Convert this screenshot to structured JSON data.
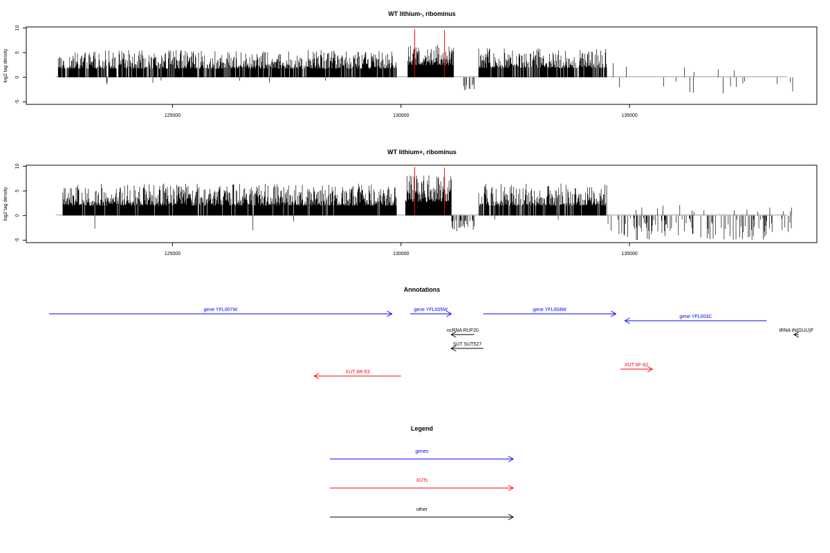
{
  "chart_data": [
    {
      "type": "bar",
      "title": "WT lithium-, ribominus",
      "xlabel": "",
      "ylabel": "log2 tag density",
      "xlim": [
        121800,
        139100
      ],
      "ylim": [
        -5.5,
        10.2
      ],
      "x_ticks": [
        125000,
        130000,
        135000
      ],
      "x_tick_labels": [
        "125000",
        "130000",
        "135000"
      ],
      "y_ticks": [
        -5,
        0,
        5,
        10
      ],
      "y_tick_labels": [
        "-5",
        "0",
        "5",
        "10"
      ],
      "grid": false,
      "bar_color": "#000000",
      "highlight_color": "#ff0000",
      "highlight_bars": [
        {
          "x": 130300,
          "y": 9.7
        },
        {
          "x": 130950,
          "y": 9.6
        }
      ],
      "segments": [
        {
          "start": 122500,
          "end": 129900,
          "density": 0.86,
          "min": 0.5,
          "max": 5.5,
          "neg_rate": 0.004,
          "neg_min": -1.5,
          "neg_max": -0.5
        },
        {
          "start": 130150,
          "end": 131150,
          "density": 1.0,
          "min": 1.0,
          "max": 6.8,
          "neg_rate": 0.0,
          "neg_min": 0,
          "neg_max": 0
        },
        {
          "start": 131350,
          "end": 131600,
          "density": 0.3,
          "min": -2.8,
          "max": -1.0,
          "neg_rate": 1.0,
          "neg_min": -2.8,
          "neg_max": -1.0
        },
        {
          "start": 131700,
          "end": 134500,
          "density": 0.85,
          "min": 0.5,
          "max": 6.0,
          "neg_rate": 0.0,
          "neg_min": 0,
          "neg_max": 0
        },
        {
          "start": 134600,
          "end": 138600,
          "density": 0.05,
          "min": -3.3,
          "max": 3.3,
          "neg_rate": 0.7,
          "neg_min": -3.3,
          "neg_max": -0.5
        }
      ]
    },
    {
      "type": "bar",
      "title": "WT lithium+, ribominus",
      "xlabel": "",
      "ylabel": "log2 tag density",
      "xlim": [
        121800,
        139100
      ],
      "ylim": [
        -5.5,
        10.2
      ],
      "x_ticks": [
        125000,
        130000,
        135000
      ],
      "x_tick_labels": [
        "125000",
        "130000",
        "135000"
      ],
      "y_ticks": [
        -5,
        0,
        5,
        10
      ],
      "y_tick_labels": [
        "-5",
        "0",
        "5",
        "10"
      ],
      "grid": false,
      "bar_color": "#000000",
      "highlight_color": "#ff0000",
      "highlight_bars": [
        {
          "x": 130300,
          "y": 9.8
        },
        {
          "x": 130950,
          "y": 9.7
        }
      ],
      "segments": [
        {
          "start": 122600,
          "end": 129900,
          "density": 0.95,
          "min": 0.5,
          "max": 6.5,
          "neg_rate": 0.01,
          "neg_min": -3.0,
          "neg_max": -0.5
        },
        {
          "start": 130100,
          "end": 131100,
          "density": 1.0,
          "min": 1.0,
          "max": 8.2,
          "neg_rate": 0.0,
          "neg_min": 0,
          "neg_max": 0
        },
        {
          "start": 131100,
          "end": 131600,
          "density": 0.45,
          "min": -3.3,
          "max": -0.8,
          "neg_rate": 1.0,
          "neg_min": -3.3,
          "neg_max": -0.8
        },
        {
          "start": 131700,
          "end": 134500,
          "density": 0.9,
          "min": 0.5,
          "max": 6.5,
          "neg_rate": 0.01,
          "neg_min": -1.0,
          "neg_max": -0.5
        },
        {
          "start": 134500,
          "end": 138600,
          "density": 0.3,
          "min": -5.0,
          "max": 2.2,
          "neg_rate": 0.85,
          "neg_min": -5.0,
          "neg_max": -0.5
        }
      ]
    }
  ],
  "annotations": {
    "title": "Annotations",
    "features": [
      {
        "name": "gene YFL007W",
        "class": "gene",
        "start": 122300,
        "end": 129800,
        "strand": "+",
        "track": 0
      },
      {
        "name": "gene YFL005W",
        "class": "gene",
        "start": 130200,
        "end": 131100,
        "strand": "+",
        "track": 0
      },
      {
        "name": "gene YFL004W",
        "class": "gene",
        "start": 131800,
        "end": 134700,
        "strand": "+",
        "track": 0
      },
      {
        "name": "gene YFL003C",
        "class": "gene",
        "start": 134900,
        "end": 138000,
        "strand": "-",
        "track": 0.5
      },
      {
        "name": "ncRNA RUF20",
        "class": "other",
        "start": 131100,
        "end": 131600,
        "strand": "-",
        "track": 1.5
      },
      {
        "name": "tRNA tN(GUU)F",
        "class": "other",
        "start": 138600,
        "end": 138700,
        "strand": "-",
        "track": 1.5
      },
      {
        "name": "SUT SUT527",
        "class": "other",
        "start": 131100,
        "end": 131800,
        "strand": "-",
        "track": 2.5
      },
      {
        "name": "XUT 6F-62",
        "class": "xut",
        "start": 134800,
        "end": 135500,
        "strand": "+",
        "track": 4
      },
      {
        "name": "XUT 6R-53",
        "class": "xut",
        "start": 128100,
        "end": 130000,
        "strand": "-",
        "track": 4.5
      }
    ]
  },
  "legend": {
    "title": "Legend",
    "entries": [
      {
        "label": "genes",
        "class": "gene"
      },
      {
        "label": "XUTs",
        "class": "xut"
      },
      {
        "label": "other",
        "class": "other"
      }
    ]
  },
  "colors": {
    "gene": "#0000ff",
    "xut": "#ff0000",
    "other": "#000000",
    "axis": "#000000",
    "baseline": "#999999"
  }
}
